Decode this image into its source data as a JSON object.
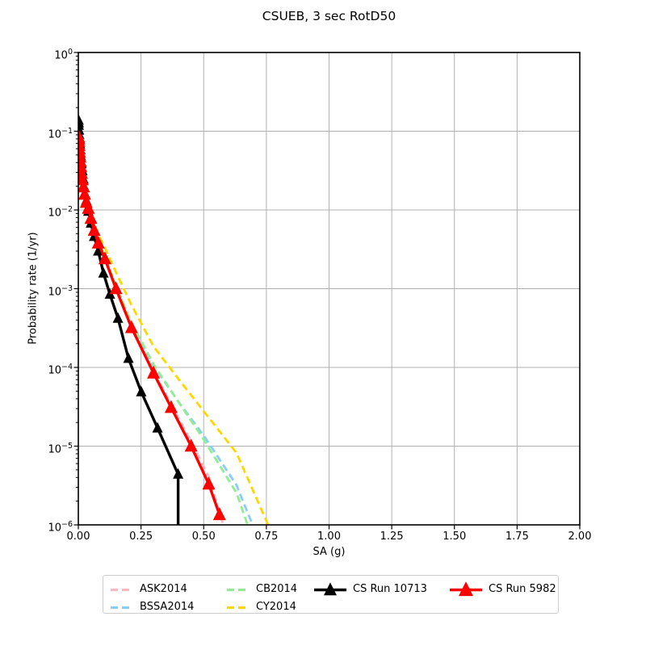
{
  "figure": {
    "title": "CSUEB, 3 sec RotD50",
    "xlabel": "SA (g)",
    "ylabel": "Probability rate (1/yr)"
  },
  "chart_data": {
    "type": "line",
    "title": "CSUEB, 3 sec RotD50",
    "xlabel": "SA (g)",
    "ylabel": "Probability rate (1/yr)",
    "grid": true,
    "legend_position": "below",
    "x_axis": {
      "min": 0.0,
      "max": 2.0,
      "scale": "linear",
      "tick_values": [
        0.0,
        0.25,
        0.5,
        0.75,
        1.0,
        1.25,
        1.5,
        1.75,
        2.0
      ],
      "tick_labels": [
        "0.00",
        "0.25",
        "0.50",
        "0.75",
        "1.00",
        "1.25",
        "1.50",
        "1.75",
        "2.00"
      ]
    },
    "y_axis": {
      "min": 1e-06,
      "max": 1.0,
      "scale": "log",
      "tick_exponents": [
        0,
        -1,
        -2,
        -3,
        -4,
        -5,
        -6
      ]
    },
    "series": [
      {
        "name": "ASK2014",
        "color": "#ffb6c1",
        "line": "dashed",
        "width": 2.8,
        "marker": "none",
        "points": [
          [
            0.001,
            0.082
          ],
          [
            0.002,
            0.072
          ],
          [
            0.003,
            0.064
          ],
          [
            0.005,
            0.0525
          ],
          [
            0.008,
            0.0405
          ],
          [
            0.013,
            0.0287
          ],
          [
            0.02,
            0.0193
          ],
          [
            0.0316,
            0.0123
          ],
          [
            0.0501,
            0.0077
          ],
          [
            0.0794,
            0.0039
          ],
          [
            0.106,
            0.00245
          ],
          [
            0.15,
            0.00103
          ],
          [
            0.212,
            0.00033
          ],
          [
            0.3,
            9e-05
          ],
          [
            0.37,
            3.4e-05
          ],
          [
            0.45,
            1.15e-05
          ],
          [
            0.52,
            4.1e-06
          ],
          [
            0.578,
            1e-06
          ]
        ]
      },
      {
        "name": "BSSA2014",
        "color": "#87cefa",
        "line": "dashed",
        "width": 2.8,
        "marker": "none",
        "points": [
          [
            0.001,
            0.079
          ],
          [
            0.002,
            0.0695
          ],
          [
            0.003,
            0.0615
          ],
          [
            0.005,
            0.0505
          ],
          [
            0.008,
            0.039
          ],
          [
            0.013,
            0.0277
          ],
          [
            0.02,
            0.0187
          ],
          [
            0.0316,
            0.012
          ],
          [
            0.0501,
            0.0076
          ],
          [
            0.0794,
            0.0039
          ],
          [
            0.106,
            0.0025
          ],
          [
            0.15,
            0.00108
          ],
          [
            0.212,
            0.00036
          ],
          [
            0.3,
            0.000105
          ],
          [
            0.398,
            3.7e-05
          ],
          [
            0.501,
            1.35e-05
          ],
          [
            0.631,
            3.2e-06
          ],
          [
            0.695,
            1e-06
          ]
        ]
      },
      {
        "name": "CB2014",
        "color": "#90ee90",
        "line": "dashed",
        "width": 2.8,
        "marker": "none",
        "points": [
          [
            0.001,
            0.08
          ],
          [
            0.002,
            0.0705
          ],
          [
            0.003,
            0.0625
          ],
          [
            0.005,
            0.051
          ],
          [
            0.008,
            0.0395
          ],
          [
            0.013,
            0.028
          ],
          [
            0.02,
            0.019
          ],
          [
            0.0316,
            0.0121
          ],
          [
            0.0501,
            0.0077
          ],
          [
            0.0794,
            0.004
          ],
          [
            0.106,
            0.00255
          ],
          [
            0.15,
            0.0011
          ],
          [
            0.212,
            0.00037
          ],
          [
            0.3,
            0.00011
          ],
          [
            0.398,
            3.7e-05
          ],
          [
            0.501,
            1.2e-05
          ],
          [
            0.631,
            2.55e-06
          ],
          [
            0.675,
            1e-06
          ]
        ]
      },
      {
        "name": "CY2014",
        "color": "#ffd700",
        "line": "dashed",
        "width": 2.8,
        "marker": "none",
        "points": [
          [
            0.001,
            0.0815
          ],
          [
            0.002,
            0.0715
          ],
          [
            0.003,
            0.0635
          ],
          [
            0.005,
            0.052
          ],
          [
            0.008,
            0.0405
          ],
          [
            0.013,
            0.0292
          ],
          [
            0.02,
            0.0202
          ],
          [
            0.0316,
            0.0133
          ],
          [
            0.0501,
            0.0088
          ],
          [
            0.0794,
            0.0049
          ],
          [
            0.106,
            0.0033
          ],
          [
            0.15,
            0.00162
          ],
          [
            0.212,
            0.00062
          ],
          [
            0.3,
            0.000185
          ],
          [
            0.398,
            7.2e-05
          ],
          [
            0.501,
            2.75e-05
          ],
          [
            0.631,
            8.2e-06
          ],
          [
            0.757,
            1e-06
          ]
        ]
      },
      {
        "name": "CS Run 10713",
        "color": "#000000",
        "line": "solid",
        "width": 3.4,
        "marker": "triangle",
        "marker_size": 6.5,
        "points": [
          [
            0.001,
            0.138
          ],
          [
            0.0015,
            0.128
          ],
          [
            0.002,
            0.119
          ],
          [
            0.003,
            0.103
          ],
          [
            0.004,
            0.0905
          ],
          [
            0.005,
            0.0805
          ],
          [
            0.0065,
            0.0685
          ],
          [
            0.008,
            0.0585
          ],
          [
            0.01,
            0.0485
          ],
          [
            0.013,
            0.0385
          ],
          [
            0.016,
            0.0315
          ],
          [
            0.02,
            0.0248
          ],
          [
            0.025,
            0.0192
          ],
          [
            0.0316,
            0.0132
          ],
          [
            0.0398,
            0.0096
          ],
          [
            0.0501,
            0.0068
          ],
          [
            0.063,
            0.0046
          ],
          [
            0.0794,
            0.003
          ],
          [
            0.1,
            0.00158
          ],
          [
            0.126,
            0.00085
          ],
          [
            0.158,
            0.00042
          ],
          [
            0.2,
            0.00013
          ],
          [
            0.251,
            4.9e-05
          ],
          [
            0.316,
            1.7e-05
          ],
          [
            0.398,
            4.4e-06
          ],
          [
            0.398,
            1e-06
          ]
        ],
        "last_point_no_marker": true
      },
      {
        "name": "CS Run 5982",
        "color": "#ff0000",
        "line": "solid",
        "width": 3.4,
        "marker": "triangle",
        "marker_size": 8,
        "points": [
          [
            0.001,
            0.085
          ],
          [
            0.0015,
            0.0795
          ],
          [
            0.002,
            0.0745
          ],
          [
            0.003,
            0.066
          ],
          [
            0.004,
            0.0595
          ],
          [
            0.005,
            0.054
          ],
          [
            0.0065,
            0.047
          ],
          [
            0.008,
            0.0415
          ],
          [
            0.01,
            0.0355
          ],
          [
            0.013,
            0.0292
          ],
          [
            0.016,
            0.0242
          ],
          [
            0.02,
            0.0196
          ],
          [
            0.025,
            0.0158
          ],
          [
            0.0316,
            0.0125
          ],
          [
            0.0398,
            0.0105
          ],
          [
            0.0501,
            0.0078
          ],
          [
            0.063,
            0.0055
          ],
          [
            0.0794,
            0.0038
          ],
          [
            0.106,
            0.0024
          ],
          [
            0.15,
            0.001
          ],
          [
            0.212,
            0.00032
          ],
          [
            0.3,
            8.5e-05
          ],
          [
            0.37,
            3.1e-05
          ],
          [
            0.45,
            1e-05
          ],
          [
            0.52,
            3.3e-06
          ],
          [
            0.563,
            1.35e-06
          ]
        ],
        "last_point_no_marker": false
      }
    ],
    "legend": [
      {
        "label": "ASK2014",
        "color": "#ffb6c1",
        "style": "dashed"
      },
      {
        "label": "BSSA2014",
        "color": "#87cefa",
        "style": "dashed"
      },
      {
        "label": "CB2014",
        "color": "#90ee90",
        "style": "dashed"
      },
      {
        "label": "CY2014",
        "color": "#ffd700",
        "style": "dashed"
      },
      {
        "label": "CS Run 10713",
        "color": "#000000",
        "style": "solid-triangle"
      },
      {
        "label": "CS Run 5982",
        "color": "#ff0000",
        "style": "solid-triangle"
      }
    ],
    "colors": {
      "grid": "#b0b0b0",
      "frame": "#000000",
      "background": "#ffffff"
    }
  }
}
